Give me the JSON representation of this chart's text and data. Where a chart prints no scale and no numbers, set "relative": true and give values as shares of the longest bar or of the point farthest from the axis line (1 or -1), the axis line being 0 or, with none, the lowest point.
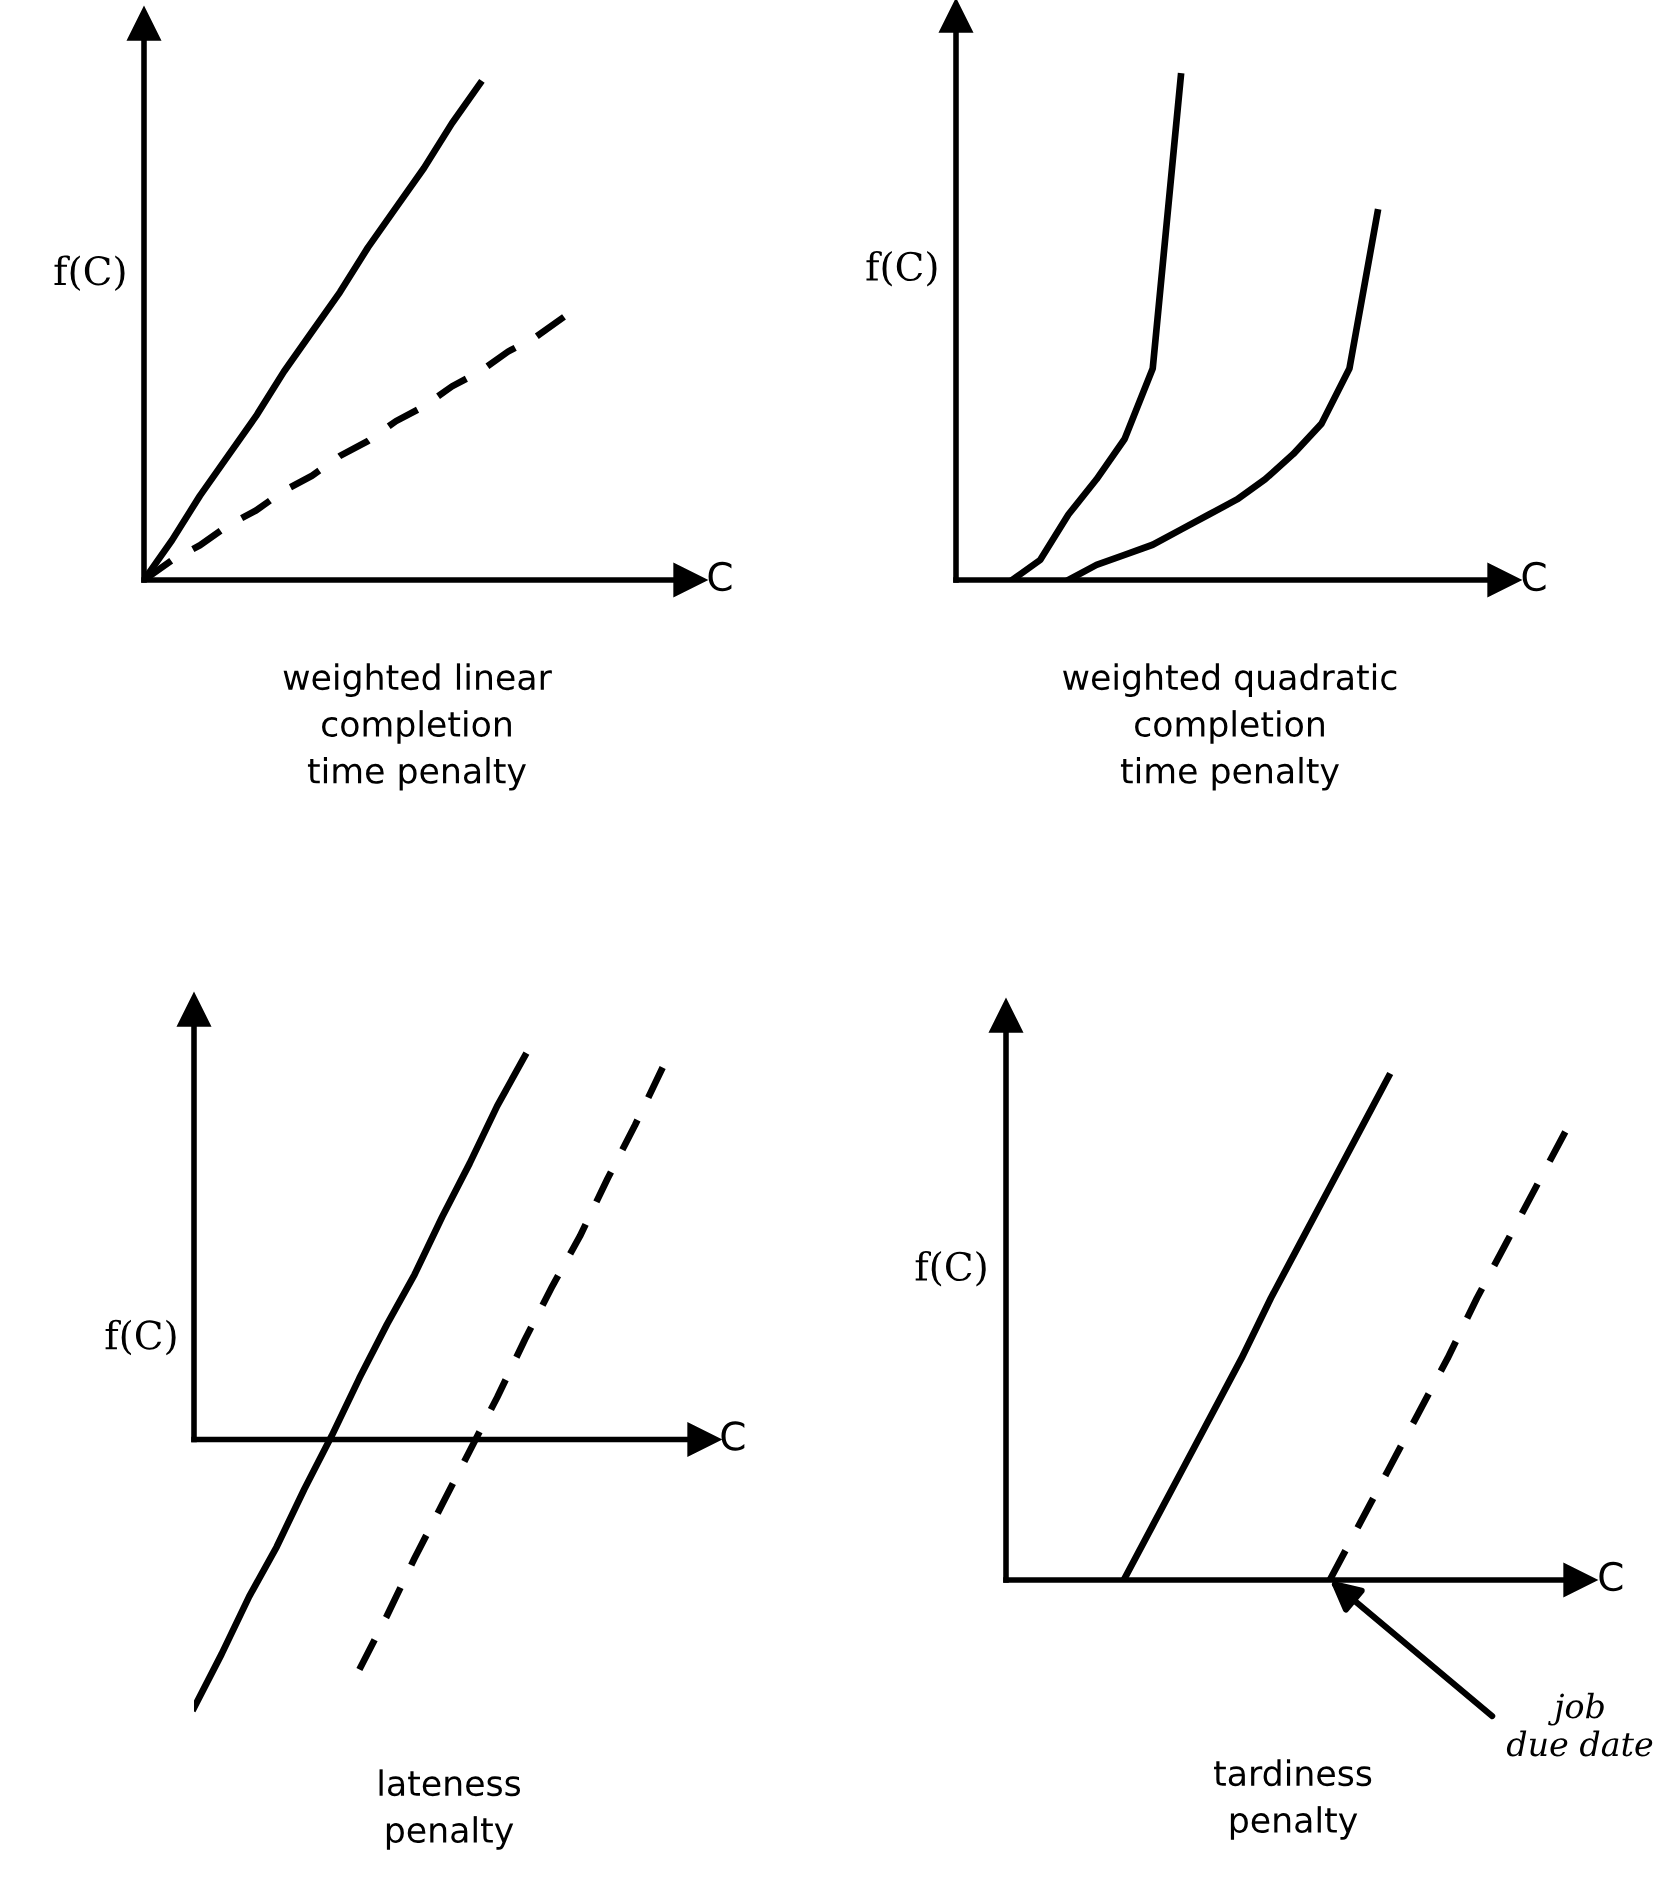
{
  "chart_data": [
    {
      "type": "line",
      "relative": true,
      "title": "weighted linear\ncompletion\ntime penalty",
      "xlabel": "C",
      "ylabel": "f(C)",
      "categories": [
        null,
        null,
        null,
        null,
        null,
        null,
        null,
        null,
        null,
        null,
        null,
        null,
        null,
        null,
        null,
        null,
        null,
        null,
        null,
        null
      ],
      "series": [
        {
          "color": "#000000",
          "line_style": "solid",
          "values": [
            0,
            0.08,
            0.17,
            0.25,
            0.33,
            0.42,
            0.5,
            0.58,
            0.67,
            0.75,
            0.83,
            0.92,
            1,
            null,
            null,
            null,
            null,
            null,
            null,
            null
          ]
        },
        {
          "color": "#000000",
          "line_style": "dashed",
          "values": [
            0,
            0.04,
            0.07,
            0.11,
            0.14,
            0.18,
            0.21,
            0.25,
            0.28,
            0.32,
            0.35,
            0.39,
            0.42,
            0.46,
            0.49,
            0.53,
            null,
            null,
            null,
            null
          ]
        }
      ]
    },
    {
      "type": "line",
      "relative": true,
      "title": "weighted quadratic\ncompletion\ntime penalty",
      "xlabel": "C",
      "ylabel": "f(C)",
      "categories": [
        null,
        null,
        null,
        null,
        null,
        null,
        null,
        null,
        null,
        null,
        null,
        null,
        null,
        null,
        null,
        null,
        null,
        null,
        null,
        null
      ],
      "series": [
        {
          "color": "#000000",
          "line_style": "solid",
          "values": [
            null,
            null,
            0,
            0.04,
            0.13,
            0.2,
            0.28,
            0.42,
            1,
            null,
            null,
            null,
            null,
            null,
            null,
            null,
            null,
            null,
            null,
            null
          ]
        },
        {
          "color": "#000000",
          "line_style": "solid",
          "values": [
            null,
            null,
            null,
            null,
            0,
            0.03,
            0.05,
            0.07,
            0.1,
            0.13,
            0.16,
            0.2,
            0.25,
            0.31,
            0.42,
            0.73,
            null,
            null,
            null,
            null
          ]
        }
      ]
    },
    {
      "type": "line",
      "relative": true,
      "title": "lateness\npenalty",
      "xlabel": "C",
      "ylabel": "f(C)",
      "categories": [
        null,
        null,
        null,
        null,
        null,
        null,
        null,
        null,
        null,
        null,
        null,
        null,
        null,
        null,
        null,
        null,
        null,
        null,
        null
      ],
      "series": [
        {
          "color": "#000000",
          "line_style": "solid",
          "values": [
            -0.7,
            -0.56,
            -0.41,
            -0.28,
            -0.13,
            0.01,
            0.16,
            0.3,
            0.43,
            0.58,
            0.72,
            0.87,
            1,
            null,
            null,
            null,
            null,
            null,
            null
          ]
        },
        {
          "color": "#000000",
          "line_style": "dashed",
          "values": [
            null,
            null,
            null,
            null,
            null,
            null,
            -0.6,
            -0.46,
            -0.31,
            -0.17,
            -0.03,
            0.11,
            0.26,
            0.4,
            0.53,
            0.68,
            0.82,
            0.97,
            null
          ]
        }
      ]
    },
    {
      "type": "line",
      "relative": true,
      "title": "tardiness\npenalty",
      "xlabel": "C",
      "ylabel": "f(C)",
      "categories": [
        null,
        null,
        null,
        null,
        null,
        null,
        null,
        null,
        null,
        null,
        null,
        null,
        null,
        null,
        null,
        null,
        null,
        null,
        null,
        null
      ],
      "series": [
        {
          "color": "#000000",
          "line_style": "solid",
          "values": [
            null,
            null,
            null,
            null,
            0,
            0.11,
            0.22,
            0.33,
            0.44,
            0.56,
            0.67,
            0.78,
            0.89,
            1,
            null,
            null,
            null,
            null,
            null,
            null
          ]
        },
        {
          "color": "#000000",
          "line_style": "dashed",
          "values": [
            null,
            null,
            null,
            null,
            null,
            null,
            null,
            null,
            null,
            null,
            null,
            0,
            0.11,
            0.22,
            0.33,
            0.44,
            0.56,
            0.67,
            0.78,
            0.89
          ]
        }
      ],
      "annotations": [
        "job\ndue date"
      ]
    }
  ]
}
